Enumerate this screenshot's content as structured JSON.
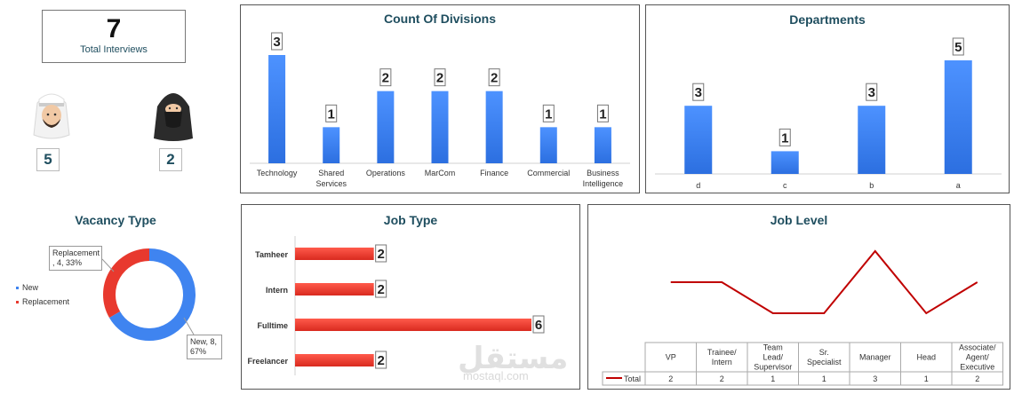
{
  "kpi": {
    "value": "7",
    "label": "Total Interviews"
  },
  "gender": {
    "male_count": "5",
    "female_count": "2"
  },
  "colors": {
    "blue": "#3f84f0",
    "red": "#e8392e",
    "line": "#c00000",
    "title": "#1f4e5f"
  },
  "icons": {
    "male": "man-avatar-icon",
    "female": "woman-avatar-icon"
  },
  "watermark": {
    "text": "مستقل",
    "url": "mostaql.com"
  },
  "chart_data": [
    {
      "type": "bar",
      "title": "Count Of Divisions",
      "categories": [
        "Technology",
        "Shared Services",
        "Operations",
        "MarCom",
        "Finance",
        "Commercial",
        "Business Intelligence"
      ],
      "values": [
        3,
        1,
        2,
        2,
        2,
        1,
        1
      ],
      "ylim": [
        0,
        3
      ]
    },
    {
      "type": "bar",
      "title": "Departments",
      "categories": [
        "d",
        "c",
        "b",
        "a"
      ],
      "values": [
        3,
        1,
        3,
        5
      ],
      "ylim": [
        0,
        5
      ]
    },
    {
      "type": "pie",
      "title": "Vacancy Type",
      "series": [
        {
          "name": "New",
          "value": 8,
          "percent": "67%",
          "label": "New, 8, 67%"
        },
        {
          "name": "Replacement",
          "value": 4,
          "percent": "33%",
          "label": "Replacement, 4, 33%"
        }
      ],
      "legend": "left"
    },
    {
      "type": "bar",
      "title": "Job Type",
      "orientation": "horizontal",
      "categories": [
        "Tamheer",
        "Intern",
        "Fulltime",
        "Freelancer"
      ],
      "values": [
        2,
        2,
        6,
        2
      ],
      "ylim": [
        0,
        6
      ]
    },
    {
      "type": "line",
      "title": "Job Level",
      "categories": [
        "VP",
        "Trainee/ Intern",
        "Team Lead/ Supervisor",
        "Sr. Specialist",
        "Manager",
        "Head",
        "Associate/ Agent/ Executive"
      ],
      "series": [
        {
          "name": "Total",
          "values": [
            2,
            2,
            1,
            1,
            3,
            1,
            2
          ]
        }
      ],
      "ylim": [
        1,
        3
      ],
      "table": true
    }
  ]
}
